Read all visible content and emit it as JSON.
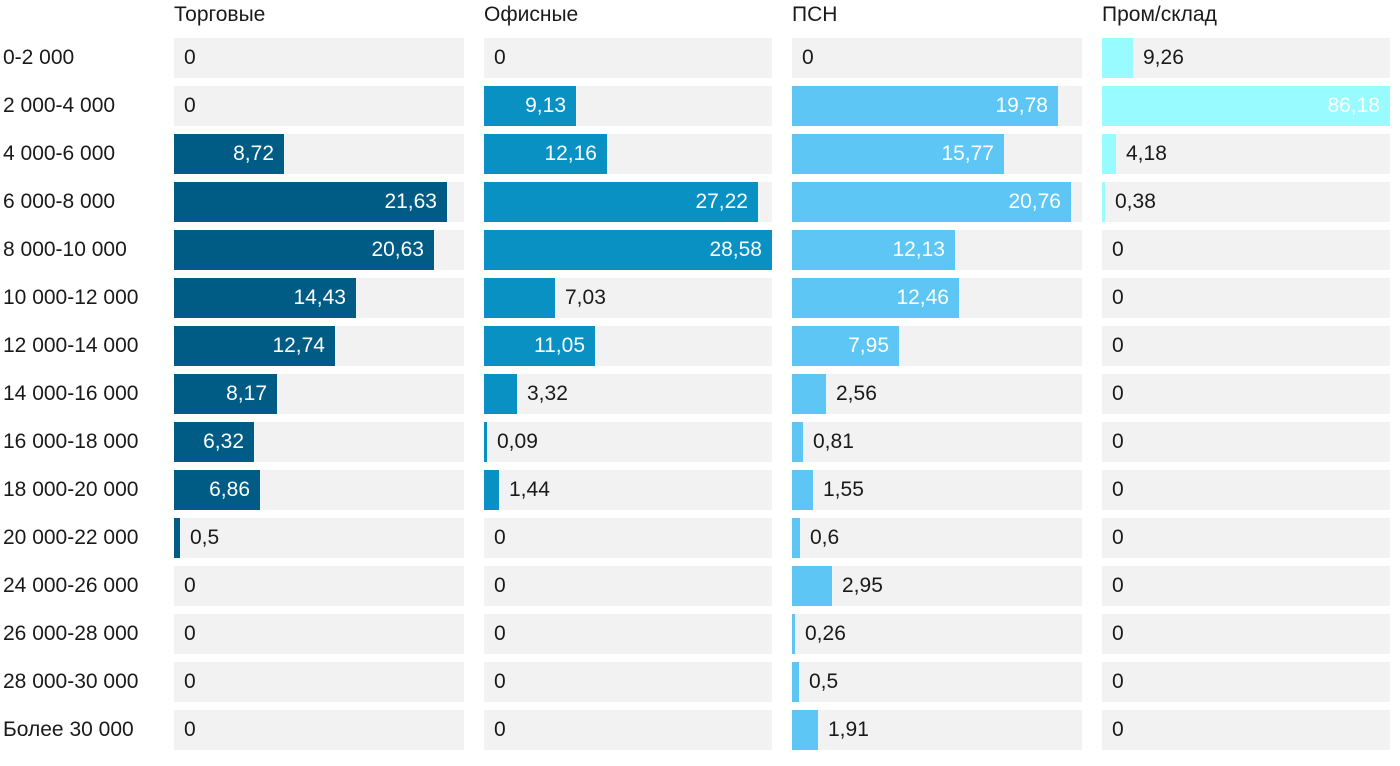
{
  "chart_data": {
    "type": "bar",
    "orientation": "horizontal",
    "layout": "small-multiples",
    "categories": [
      "0-2 000",
      "2 000-4 000",
      "4 000-6 000",
      "6 000-8 000",
      "8 000-10 000",
      "10 000-12 000",
      "12 000-14 000",
      "14 000-16 000",
      "16 000-18 000",
      "18 000-20 000",
      "20 000-22 000",
      "24 000-26 000",
      "26 000-28 000",
      "28 000-30 000",
      "Более 30 000"
    ],
    "series": [
      {
        "name": "Торговые",
        "color": "#005b85",
        "xlim": [
          0,
          23
        ],
        "values": [
          0,
          0,
          8.72,
          21.63,
          20.63,
          14.43,
          12.74,
          8.17,
          6.32,
          6.86,
          0.5,
          0,
          0,
          0,
          0
        ],
        "labels": [
          "0",
          "0",
          "8,72",
          "21,63",
          "20,63",
          "14,43",
          "12,74",
          "8,17",
          "6,32",
          "6,86",
          "0,5",
          "0",
          "0",
          "0",
          "0"
        ]
      },
      {
        "name": "Офисные",
        "color": "#0891c2",
        "xlim": [
          0,
          28.58
        ],
        "values": [
          0,
          9.13,
          12.16,
          27.22,
          28.58,
          7.03,
          11.05,
          3.32,
          0.09,
          1.44,
          0,
          0,
          0,
          0,
          0
        ],
        "labels": [
          "0",
          "9,13",
          "12,16",
          "27,22",
          "28,58",
          "7,03",
          "11,05",
          "3,32",
          "0,09",
          "1,44",
          "0",
          "0",
          "0",
          "0",
          "0"
        ]
      },
      {
        "name": "ПСН",
        "color": "#5ec6f5",
        "xlim": [
          0,
          21.6
        ],
        "values": [
          0,
          19.78,
          15.77,
          20.76,
          12.13,
          12.46,
          7.95,
          2.56,
          0.81,
          1.55,
          0.6,
          2.95,
          0.26,
          0.5,
          1.91
        ],
        "labels": [
          "0",
          "19,78",
          "15,77",
          "20,76",
          "12,13",
          "12,46",
          "7,95",
          "2,56",
          "0,81",
          "1,55",
          "0,6",
          "2,95",
          "0,26",
          "0,5",
          "1,91"
        ]
      },
      {
        "name": "Пром/склад",
        "color": "#98fbff",
        "xlim": [
          0,
          86.18
        ],
        "values": [
          9.26,
          86.18,
          4.18,
          0.38,
          0,
          0,
          0,
          0,
          0,
          0,
          0,
          0,
          0,
          0,
          0
        ],
        "labels": [
          "9,26",
          "86,18",
          "4,18",
          "0,38",
          "0",
          "0",
          "0",
          "0",
          "0",
          "0",
          "0",
          "0",
          "0",
          "0",
          "0"
        ]
      }
    ],
    "grid": false,
    "legend": "none"
  }
}
